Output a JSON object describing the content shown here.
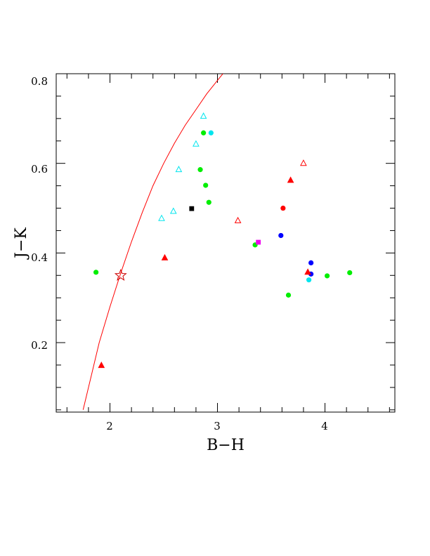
{
  "chart_data": {
    "type": "scatter",
    "title": "",
    "xlabel": "B−H",
    "ylabel": "J−K",
    "xlim": [
      1.5,
      4.65
    ],
    "ylim": [
      0.045,
      0.8
    ],
    "grid": false,
    "x_ticks": [
      "2",
      "3",
      "4"
    ],
    "y_ticks": [
      "0.2",
      "0.4",
      "0.6",
      "0.8"
    ],
    "colors": {
      "red": "#ff0000",
      "green": "#00ee00",
      "cyan": "#00e5ee",
      "blue": "#0000ff",
      "black": "#000000",
      "magenta": "#ee00ee",
      "curve": "#ff0000",
      "star": "#cc0000"
    },
    "curve": {
      "color": "red",
      "points": [
        [
          1.75,
          0.05
        ],
        [
          1.82,
          0.12
        ],
        [
          1.9,
          0.2
        ],
        [
          2.0,
          0.28
        ],
        [
          2.1,
          0.355
        ],
        [
          2.2,
          0.425
        ],
        [
          2.3,
          0.49
        ],
        [
          2.4,
          0.55
        ],
        [
          2.5,
          0.6
        ],
        [
          2.6,
          0.645
        ],
        [
          2.7,
          0.685
        ],
        [
          2.8,
          0.72
        ],
        [
          2.9,
          0.755
        ],
        [
          3.0,
          0.785
        ],
        [
          3.05,
          0.8
        ]
      ]
    },
    "star": {
      "x": 2.1,
      "y": 0.35,
      "color": "star"
    },
    "series": [
      {
        "marker": "circle",
        "color": "green",
        "points": [
          [
            1.87,
            0.357
          ],
          [
            2.84,
            0.586
          ],
          [
            2.87,
            0.668
          ],
          [
            2.89,
            0.551
          ],
          [
            2.92,
            0.513
          ],
          [
            3.35,
            0.418
          ],
          [
            3.66,
            0.306
          ],
          [
            4.02,
            0.349
          ],
          [
            4.23,
            0.356
          ]
        ]
      },
      {
        "marker": "circle",
        "color": "cyan",
        "points": [
          [
            2.94,
            0.668
          ],
          [
            3.85,
            0.34
          ]
        ]
      },
      {
        "marker": "circle",
        "color": "blue",
        "points": [
          [
            3.59,
            0.439
          ],
          [
            3.87,
            0.378
          ],
          [
            3.87,
            0.353
          ]
        ]
      },
      {
        "marker": "circle",
        "color": "red",
        "points": [
          [
            3.61,
            0.5
          ]
        ]
      },
      {
        "marker": "square",
        "color": "black",
        "points": [
          [
            2.76,
            0.499
          ]
        ]
      },
      {
        "marker": "square",
        "color": "magenta",
        "points": [
          [
            3.38,
            0.424
          ]
        ]
      },
      {
        "marker": "triangle-filled",
        "color": "red",
        "points": [
          [
            1.92,
            0.149
          ],
          [
            2.51,
            0.389
          ],
          [
            3.68,
            0.562
          ],
          [
            3.84,
            0.357
          ]
        ]
      },
      {
        "marker": "triangle-open",
        "color": "red",
        "points": [
          [
            3.19,
            0.472
          ],
          [
            3.8,
            0.6
          ]
        ]
      },
      {
        "marker": "triangle-open",
        "color": "cyan",
        "points": [
          [
            2.48,
            0.477
          ],
          [
            2.59,
            0.493
          ],
          [
            2.64,
            0.586
          ],
          [
            2.8,
            0.643
          ],
          [
            2.87,
            0.705
          ]
        ]
      }
    ]
  }
}
